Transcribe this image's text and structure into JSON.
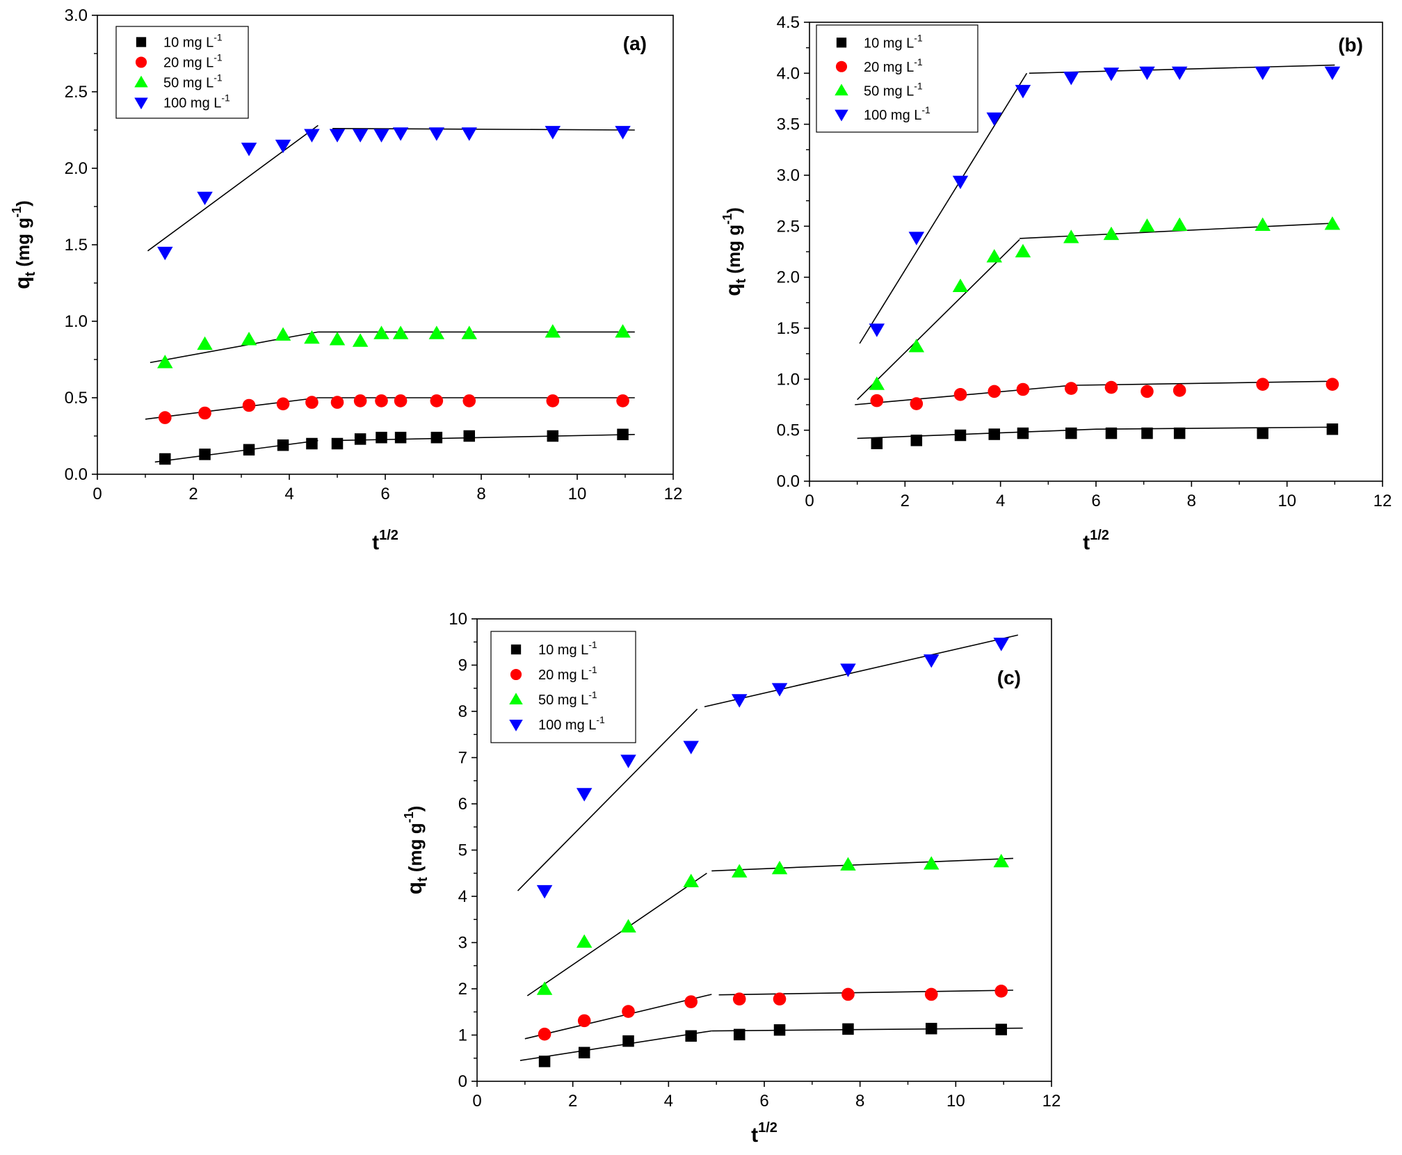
{
  "chart_data": [
    {
      "type": "scatter",
      "panel": "(a)",
      "xlabel": "t",
      "xlabel_sup": "1/2",
      "ylabel_main": "q",
      "ylabel_sub": "t",
      "ylabel_unit_pre": " (mg g",
      "ylabel_unit_sup": "-1",
      "ylabel_unit_post": ")",
      "xlim": [
        0,
        12
      ],
      "ylim": [
        0,
        3.0
      ],
      "xticks": [
        0,
        2,
        4,
        6,
        8,
        10,
        12
      ],
      "xtick_labels": [
        "0",
        "2",
        "4",
        "6",
        "8",
        "10",
        "12"
      ],
      "yticks": [
        0,
        0.5,
        1.0,
        1.5,
        2.0,
        2.5,
        3.0
      ],
      "ytick_labels": [
        "0.0",
        "0.5",
        "1.0",
        "1.5",
        "2.0",
        "2.5",
        "3.0"
      ],
      "legend_position": "top-left",
      "series": [
        {
          "name_prefix": "10 mg L",
          "name_sup": "-1",
          "marker": "square",
          "color": "#000000",
          "x": [
            1.41,
            2.24,
            3.16,
            3.87,
            4.47,
            5.0,
            5.48,
            5.92,
            6.32,
            7.07,
            7.75,
            9.49,
            10.95
          ],
          "y": [
            0.1,
            0.13,
            0.16,
            0.19,
            0.2,
            0.2,
            0.23,
            0.24,
            0.24,
            0.24,
            0.25,
            0.25,
            0.26
          ],
          "fit": [
            [
              [
                1.2,
                0.08
              ],
              [
                4.6,
                0.22
              ]
            ],
            [
              [
                4.9,
                0.22
              ],
              [
                11.2,
                0.26
              ]
            ]
          ]
        },
        {
          "name_prefix": "20 mg L",
          "name_sup": "-1",
          "marker": "circle",
          "color": "#ff0000",
          "x": [
            1.41,
            2.24,
            3.16,
            3.87,
            4.47,
            5.0,
            5.48,
            5.92,
            6.32,
            7.07,
            7.75,
            9.49,
            10.95
          ],
          "y": [
            0.37,
            0.4,
            0.45,
            0.46,
            0.47,
            0.47,
            0.48,
            0.48,
            0.48,
            0.48,
            0.48,
            0.48,
            0.48
          ],
          "fit": [
            [
              [
                1.0,
                0.36
              ],
              [
                4.6,
                0.5
              ]
            ],
            [
              [
                4.6,
                0.5
              ],
              [
                11.2,
                0.5
              ]
            ]
          ]
        },
        {
          "name_prefix": "50 mg L",
          "name_sup": "-1",
          "marker": "triangle-up",
          "color": "#00ff00",
          "x": [
            1.41,
            2.24,
            3.16,
            3.87,
            4.47,
            5.0,
            5.48,
            5.92,
            6.32,
            7.07,
            7.75,
            9.49,
            10.95
          ],
          "y": [
            0.73,
            0.85,
            0.88,
            0.91,
            0.89,
            0.88,
            0.87,
            0.92,
            0.92,
            0.92,
            0.92,
            0.93,
            0.93
          ],
          "fit": [
            [
              [
                1.1,
                0.73
              ],
              [
                4.6,
                0.93
              ]
            ],
            [
              [
                4.6,
                0.93
              ],
              [
                11.2,
                0.93
              ]
            ]
          ]
        },
        {
          "name_prefix": "100 mg L",
          "name_sup": "-1",
          "marker": "triangle-down",
          "color": "#0000ff",
          "x": [
            1.41,
            2.24,
            3.16,
            3.87,
            4.47,
            5.0,
            5.48,
            5.92,
            6.32,
            7.07,
            7.75,
            9.49,
            10.95
          ],
          "y": [
            1.45,
            1.81,
            2.13,
            2.15,
            2.22,
            2.22,
            2.22,
            2.22,
            2.23,
            2.23,
            2.23,
            2.24,
            2.24
          ],
          "fit": [
            [
              [
                1.05,
                1.46
              ],
              [
                4.6,
                2.28
              ]
            ],
            [
              [
                4.9,
                2.26
              ],
              [
                11.2,
                2.25
              ]
            ]
          ]
        }
      ]
    },
    {
      "type": "scatter",
      "panel": "(b)",
      "xlabel": "t",
      "xlabel_sup": "1/2",
      "ylabel_main": "q",
      "ylabel_sub": "t",
      "ylabel_unit_pre": " (mg g",
      "ylabel_unit_sup": "-1",
      "ylabel_unit_post": ")",
      "xlim": [
        0,
        12
      ],
      "ylim": [
        0,
        4.5
      ],
      "xticks": [
        0,
        2,
        4,
        6,
        8,
        10,
        12
      ],
      "xtick_labels": [
        "0",
        "2",
        "4",
        "6",
        "8",
        "10",
        "12"
      ],
      "yticks": [
        0,
        0.5,
        1.0,
        1.5,
        2.0,
        2.5,
        3.0,
        3.5,
        4.0,
        4.5
      ],
      "ytick_labels": [
        "0.0",
        "0.5",
        "1.0",
        "1.5",
        "2.0",
        "2.5",
        "3.0",
        "3.5",
        "4.0",
        "4.5"
      ],
      "legend_position": "top-left",
      "series": [
        {
          "name_prefix": "10 mg L",
          "name_sup": "-1",
          "marker": "square",
          "color": "#000000",
          "x": [
            1.41,
            2.24,
            3.16,
            3.87,
            4.47,
            5.48,
            6.32,
            7.07,
            7.75,
            9.49,
            10.95
          ],
          "y": [
            0.37,
            0.4,
            0.45,
            0.46,
            0.47,
            0.47,
            0.47,
            0.47,
            0.47,
            0.47,
            0.51
          ],
          "fit": [
            [
              [
                1.0,
                0.42
              ],
              [
                6.0,
                0.51
              ]
            ],
            [
              [
                6.0,
                0.51
              ],
              [
                11.0,
                0.53
              ]
            ]
          ]
        },
        {
          "name_prefix": "20 mg L",
          "name_sup": "-1",
          "marker": "circle",
          "color": "#ff0000",
          "x": [
            1.41,
            2.24,
            3.16,
            3.87,
            4.47,
            5.48,
            6.32,
            7.07,
            7.75,
            9.49,
            10.95
          ],
          "y": [
            0.79,
            0.76,
            0.85,
            0.88,
            0.9,
            0.91,
            0.92,
            0.88,
            0.89,
            0.95,
            0.95
          ],
          "fit": [
            [
              [
                0.95,
                0.75
              ],
              [
                5.5,
                0.94
              ]
            ],
            [
              [
                5.5,
                0.94
              ],
              [
                11.0,
                0.98
              ]
            ]
          ]
        },
        {
          "name_prefix": "50 mg L",
          "name_sup": "-1",
          "marker": "triangle-up",
          "color": "#00ff00",
          "x": [
            1.41,
            2.24,
            3.16,
            3.87,
            4.47,
            5.48,
            6.32,
            7.07,
            7.75,
            9.49,
            10.95
          ],
          "y": [
            0.95,
            1.32,
            1.91,
            2.2,
            2.25,
            2.39,
            2.42,
            2.5,
            2.51,
            2.51,
            2.52
          ],
          "fit": [
            [
              [
                1.0,
                0.8
              ],
              [
                4.4,
                2.37
              ]
            ],
            [
              [
                4.4,
                2.38
              ],
              [
                11.0,
                2.53
              ]
            ]
          ]
        },
        {
          "name_prefix": "100 mg L",
          "name_sup": "-1",
          "marker": "triangle-down",
          "color": "#0000ff",
          "x": [
            1.41,
            2.24,
            3.16,
            3.87,
            4.47,
            5.48,
            6.32,
            7.07,
            7.75,
            9.49,
            10.95
          ],
          "y": [
            1.49,
            2.39,
            2.94,
            3.56,
            3.83,
            3.96,
            4.0,
            4.01,
            4.01,
            4.01,
            4.01
          ],
          "fit": [
            [
              [
                1.05,
                1.35
              ],
              [
                4.55,
                4.0
              ]
            ],
            [
              [
                4.6,
                4.0
              ],
              [
                11.0,
                4.08
              ]
            ]
          ]
        }
      ]
    },
    {
      "type": "scatter",
      "panel": "(c)",
      "xlabel": "t",
      "xlabel_sup": "1/2",
      "ylabel_main": "q",
      "ylabel_sub": "t",
      "ylabel_unit_pre": " (mg g",
      "ylabel_unit_sup": "-1",
      "ylabel_unit_post": ")",
      "xlim": [
        0,
        12
      ],
      "ylim": [
        0,
        10
      ],
      "xticks": [
        0,
        2,
        4,
        6,
        8,
        10,
        12
      ],
      "xtick_labels": [
        "0",
        "2",
        "4",
        "6",
        "8",
        "10",
        "12"
      ],
      "yticks": [
        0,
        1,
        2,
        3,
        4,
        5,
        6,
        7,
        8,
        9,
        10
      ],
      "ytick_labels": [
        "0",
        "1",
        "2",
        "3",
        "4",
        "5",
        "6",
        "7",
        "8",
        "9",
        "10"
      ],
      "legend_position": "top-left",
      "series": [
        {
          "name_prefix": "10 mg L",
          "name_sup": "-1",
          "marker": "square",
          "color": "#000000",
          "x": [
            1.41,
            2.24,
            3.16,
            4.47,
            5.48,
            6.32,
            7.75,
            9.49,
            10.95
          ],
          "y": [
            0.43,
            0.62,
            0.87,
            0.98,
            1.01,
            1.11,
            1.13,
            1.14,
            1.12
          ],
          "fit": [
            [
              [
                0.9,
                0.45
              ],
              [
                4.9,
                1.09
              ]
            ],
            [
              [
                4.9,
                1.09
              ],
              [
                11.4,
                1.15
              ]
            ]
          ]
        },
        {
          "name_prefix": "20 mg L",
          "name_sup": "-1",
          "marker": "circle",
          "color": "#ff0000",
          "x": [
            1.41,
            2.24,
            3.16,
            4.47,
            5.48,
            6.32,
            7.75,
            9.49,
            10.95
          ],
          "y": [
            1.02,
            1.31,
            1.51,
            1.72,
            1.78,
            1.78,
            1.88,
            1.88,
            1.95
          ],
          "fit": [
            [
              [
                1.0,
                0.92
              ],
              [
                4.9,
                1.88
              ]
            ],
            [
              [
                5.05,
                1.87
              ],
              [
                11.2,
                1.97
              ]
            ]
          ]
        },
        {
          "name_prefix": "50 mg L",
          "name_sup": "-1",
          "marker": "triangle-up",
          "color": "#00ff00",
          "x": [
            1.41,
            2.24,
            3.16,
            4.47,
            5.48,
            6.32,
            7.75,
            9.49,
            10.95
          ],
          "y": [
            1.99,
            3.01,
            3.34,
            4.32,
            4.53,
            4.6,
            4.68,
            4.7,
            4.75
          ],
          "fit": [
            [
              [
                1.05,
                1.85
              ],
              [
                4.8,
                4.5
              ]
            ],
            [
              [
                4.9,
                4.55
              ],
              [
                11.2,
                4.82
              ]
            ]
          ]
        },
        {
          "name_prefix": "100 mg L",
          "name_sup": "-1",
          "marker": "triangle-down",
          "color": "#0000ff",
          "x": [
            1.41,
            2.24,
            3.16,
            4.47,
            5.48,
            6.32,
            7.75,
            9.49,
            10.95
          ],
          "y": [
            4.12,
            6.22,
            6.94,
            7.24,
            8.25,
            8.49,
            8.91,
            9.11,
            9.47
          ],
          "fit": [
            [
              [
                0.85,
                4.12
              ],
              [
                4.6,
                8.05
              ]
            ],
            [
              [
                4.75,
                8.1
              ],
              [
                11.3,
                9.65
              ]
            ]
          ]
        }
      ]
    }
  ]
}
